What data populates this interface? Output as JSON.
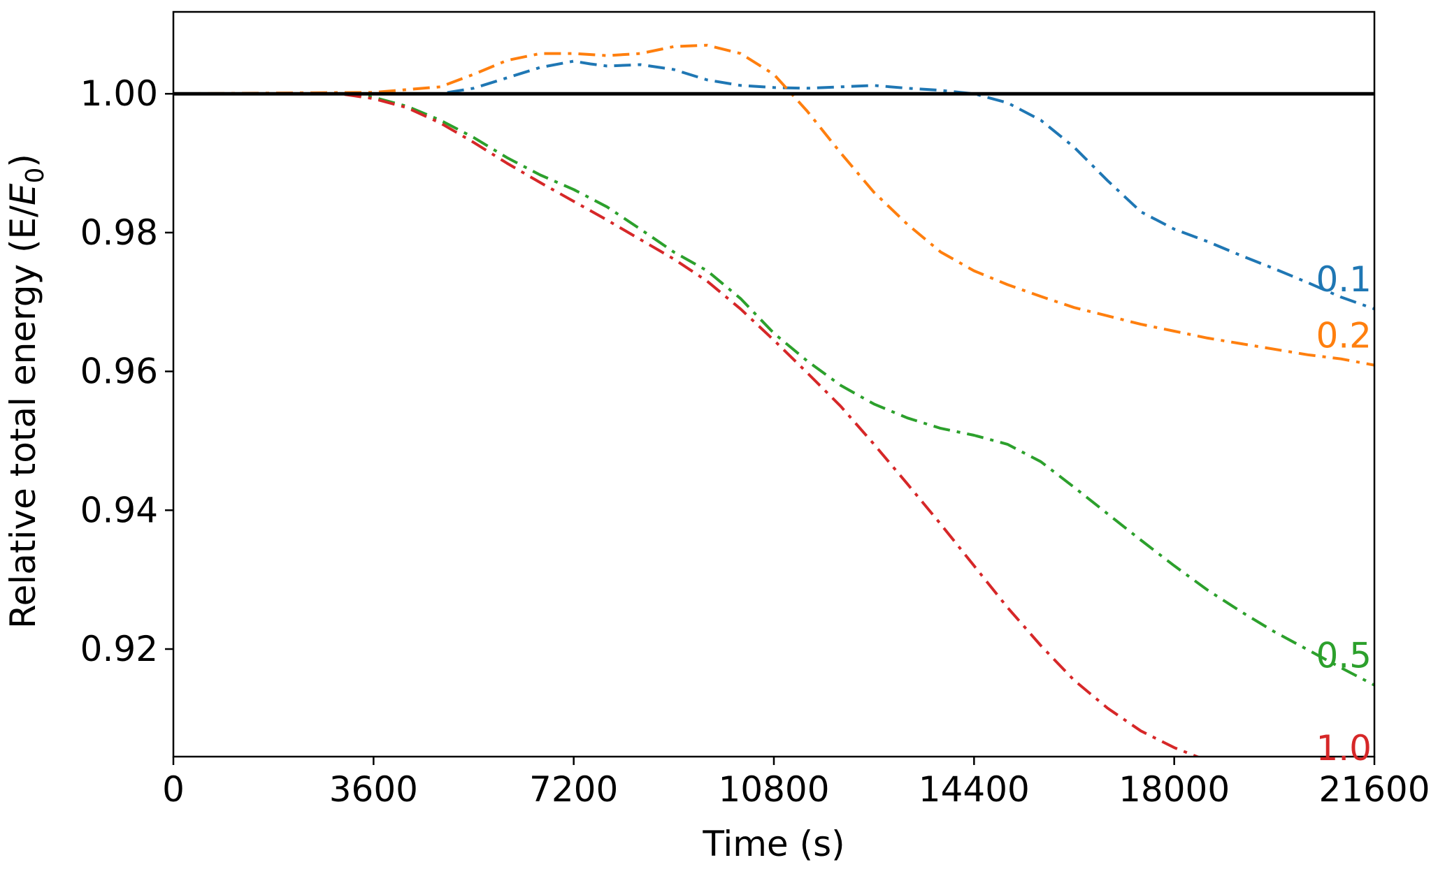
{
  "chart_data": {
    "type": "line",
    "title": "",
    "xlabel": "Time (s)",
    "ylabel": {
      "prefix": "Relative total energy (E/",
      "sym": "E",
      "sub": "0",
      "suffix": ")"
    },
    "xlim": [
      0,
      21600
    ],
    "ylim": [
      0.9045,
      1.0118
    ],
    "xticks": [
      0,
      3600,
      7200,
      10800,
      14400,
      18000,
      21600
    ],
    "xtick_labels": [
      "0",
      "3600",
      "7200",
      "10800",
      "14400",
      "18000",
      "21600"
    ],
    "yticks": [
      0.92,
      0.94,
      0.96,
      0.98,
      1.0
    ],
    "ytick_labels": [
      "0.92",
      "0.94",
      "0.96",
      "0.98",
      "1.00"
    ],
    "grid": false,
    "reference_line": {
      "y": 1.0,
      "color": "#000000"
    },
    "series": [
      {
        "name": "0.1",
        "color": "#1f77b4",
        "x": [
          0,
          3600,
          4800,
          5400,
          6000,
          6600,
          7200,
          7500,
          7800,
          8400,
          9000,
          9600,
          10200,
          10800,
          11400,
          12000,
          12600,
          13200,
          13800,
          14400,
          15000,
          15600,
          16200,
          16800,
          17400,
          18000,
          18600,
          19200,
          19800,
          20400,
          21000,
          21600
        ],
        "y": [
          1.0,
          1.0,
          1.0,
          1.0008,
          1.0023,
          1.0038,
          1.0047,
          1.0043,
          1.004,
          1.0042,
          1.0035,
          1.002,
          1.0012,
          1.0009,
          1.0008,
          1.001,
          1.0012,
          1.0008,
          1.0005,
          1.0,
          0.9987,
          0.9962,
          0.9923,
          0.9875,
          0.983,
          0.9805,
          0.9787,
          0.9767,
          0.9748,
          0.9728,
          0.9707,
          0.969
        ]
      },
      {
        "name": "0.2",
        "color": "#ff7f0e",
        "x": [
          0,
          3600,
          4800,
          5400,
          6000,
          6600,
          7200,
          7800,
          8400,
          9000,
          9600,
          10200,
          10800,
          11400,
          12000,
          12600,
          13200,
          13800,
          14400,
          15000,
          15600,
          16200,
          16800,
          17400,
          18000,
          18600,
          19200,
          19800,
          20400,
          21000,
          21600
        ],
        "y": [
          1.0,
          1.0002,
          1.001,
          1.0028,
          1.0048,
          1.0058,
          1.0058,
          1.0055,
          1.0058,
          1.0068,
          1.007,
          1.0058,
          1.0028,
          0.9975,
          0.9915,
          0.9858,
          0.9812,
          0.9772,
          0.9745,
          0.9725,
          0.9708,
          0.9692,
          0.968,
          0.9668,
          0.9658,
          0.9648,
          0.964,
          0.9632,
          0.9624,
          0.9618,
          0.9609
        ]
      },
      {
        "name": "0.5",
        "color": "#2ca02c",
        "x": [
          0,
          3000,
          3600,
          4200,
          4800,
          5400,
          6000,
          6600,
          7200,
          7800,
          8400,
          9000,
          9600,
          10200,
          10800,
          11400,
          12000,
          12600,
          13200,
          13800,
          14400,
          15000,
          15600,
          16200,
          16800,
          17400,
          18000,
          18600,
          19200,
          19800,
          20400,
          21000,
          21600
        ],
        "y": [
          1.0,
          1.0,
          0.9995,
          0.9982,
          0.9962,
          0.9937,
          0.9908,
          0.9883,
          0.9862,
          0.9837,
          0.9805,
          0.9772,
          0.9745,
          0.9705,
          0.9655,
          0.9615,
          0.958,
          0.9553,
          0.9533,
          0.9518,
          0.9508,
          0.9495,
          0.947,
          0.9433,
          0.9395,
          0.9357,
          0.932,
          0.9285,
          0.9254,
          0.9225,
          0.9199,
          0.9173,
          0.9148
        ]
      },
      {
        "name": "1.0",
        "color": "#d62728",
        "x": [
          0,
          3000,
          3600,
          4200,
          4800,
          5400,
          6000,
          6600,
          7200,
          7800,
          8400,
          9000,
          9600,
          10200,
          10800,
          11400,
          12000,
          12600,
          13200,
          13800,
          14400,
          15000,
          15600,
          16200,
          16800,
          17400,
          18000,
          18600,
          19200,
          19800,
          20400,
          21000,
          21600
        ],
        "y": [
          1.0,
          1.0,
          0.9993,
          0.998,
          0.9958,
          0.993,
          0.99,
          0.9872,
          0.9845,
          0.9818,
          0.979,
          0.9762,
          0.973,
          0.969,
          0.9645,
          0.9598,
          0.955,
          0.9495,
          0.9438,
          0.938,
          0.932,
          0.926,
          0.9205,
          0.9155,
          0.9115,
          0.9082,
          0.9058,
          0.9039,
          0.9025,
          0.9014,
          0.9006,
          0.9,
          0.8997
        ]
      }
    ]
  }
}
